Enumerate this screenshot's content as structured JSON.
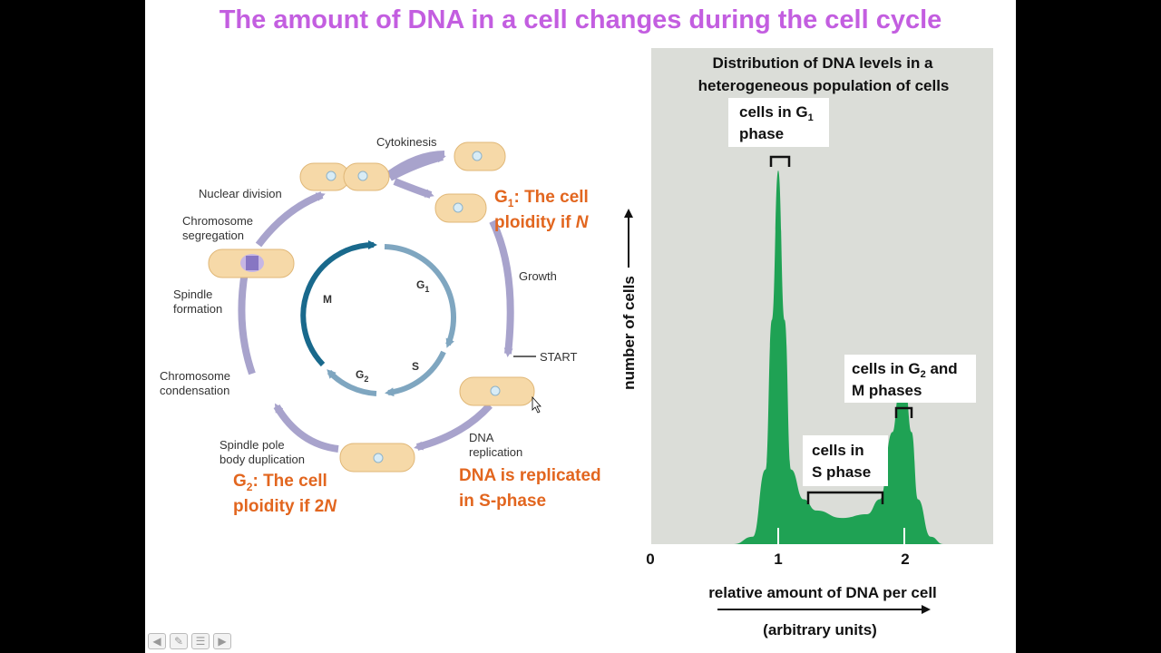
{
  "title": "The amount of DNA in a cell changes during the cell cycle",
  "cycle": {
    "phases": {
      "m": "M",
      "g1": "G",
      "g1_sub": "1",
      "s": "S",
      "g2": "G",
      "g2_sub": "2"
    },
    "labels": {
      "cytokinesis": "Cytokinesis",
      "nuclear_division": "Nuclear division",
      "chromosome_segregation_1": "Chromosome",
      "chromosome_segregation_2": "segregation",
      "spindle_formation_1": "Spindle",
      "spindle_formation_2": "formation",
      "chromosome_condensation_1": "Chromosome",
      "chromosome_condensation_2": "condensation",
      "spindle_pole_1": "Spindle pole",
      "spindle_pole_2": "body duplication",
      "growth": "Growth",
      "start": "START",
      "dna_replication_1": "DNA",
      "dna_replication_2": "replication"
    },
    "annotations": {
      "g1_line1_pre": "G",
      "g1_line1_sub": "1",
      "g1_line1_post": ": The cell",
      "g1_line2_pre": "ploidity if ",
      "g1_line2_var": "N",
      "g2_line1_pre": "G",
      "g2_line1_sub": "2",
      "g2_line1_post": ": The cell",
      "g2_line2_pre": "ploidity if 2",
      "g2_line2_var": "N",
      "dna_line1": "DNA is replicated",
      "dna_line2": "in S-phase"
    }
  },
  "histogram": {
    "title_line1": "Distribution of DNA levels in a",
    "title_line2": "heterogeneous population of cells",
    "ylabel": "number of cells",
    "xlabel": "relative amount of DNA per cell",
    "xlabel_sub": "(arbitrary units)",
    "ticks": [
      "0",
      "1",
      "2"
    ],
    "g1_box_line1_pre": "cells in G",
    "g1_box_line1_sub": "1",
    "g1_box_line2": "phase",
    "s_box_line1": "cells in",
    "s_box_line2": "S phase",
    "g2_box_line1_pre": "cells in G",
    "g2_box_line1_sub": "2",
    "g2_box_line1_post": " and",
    "g2_box_line2": "M phases",
    "fill_color": "#1fa254",
    "panel_color": "#dbddd8"
  },
  "chart_data": {
    "type": "area",
    "title": "Distribution of DNA levels in a heterogeneous population of cells",
    "xlabel": "relative amount of DNA per cell (arbitrary units)",
    "ylabel": "number of cells",
    "x_ticks": [
      0,
      1,
      2
    ],
    "series": [
      {
        "x": [
          0.65,
          0.8,
          0.9,
          0.95,
          1.0,
          1.05,
          1.1,
          1.2,
          1.3,
          1.5,
          1.7,
          1.8,
          1.9,
          1.95,
          2.0,
          2.05,
          2.1,
          2.2,
          2.3
        ],
        "y": [
          0,
          2,
          20,
          60,
          100,
          60,
          20,
          12,
          9,
          7,
          8,
          12,
          30,
          40,
          42,
          30,
          12,
          2,
          0
        ]
      }
    ]
  }
}
